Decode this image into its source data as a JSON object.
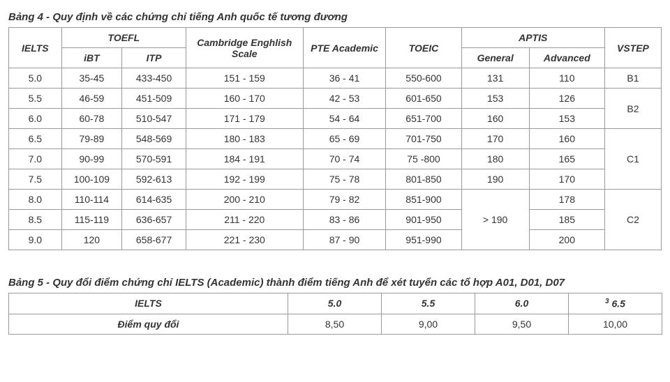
{
  "table4": {
    "title": "Bảng 4 - Quy định về các chứng chỉ tiếng Anh quốc tế tương đương",
    "header": {
      "ielts": "IELTS",
      "toefl": "TOEFL",
      "toefl_ibt": "iBT",
      "toefl_itp": "ITP",
      "cambridge": "Cambridge Enghlish Scale",
      "pte": "PTE Academic",
      "toeic": "TOEIC",
      "aptis": "APTIS",
      "aptis_general": "General",
      "aptis_advanced": "Advanced",
      "vstep": "VSTEP"
    },
    "rows": [
      {
        "ielts": "5.0",
        "ibt": "35-45",
        "itp": "433-450",
        "cam": "151 - 159",
        "pte": "36 - 41",
        "toeic": "550-600",
        "gen": "131",
        "adv": "110",
        "vstep": "B1"
      },
      {
        "ielts": "5.5",
        "ibt": "46-59",
        "itp": "451-509",
        "cam": "160 - 170",
        "pte": "42 - 53",
        "toeic": "601-650",
        "gen": "153",
        "adv": "126"
      },
      {
        "ielts": "6.0",
        "ibt": "60-78",
        "itp": "510-547",
        "cam": "171 - 179",
        "pte": "54 - 64",
        "toeic": "651-700",
        "gen": "160",
        "adv": "153"
      },
      {
        "ielts": "6.5",
        "ibt": "79-89",
        "itp": "548-569",
        "cam": "180 - 183",
        "pte": "65 - 69",
        "toeic": "701-750",
        "gen": "170",
        "adv": "160"
      },
      {
        "ielts": "7.0",
        "ibt": "90-99",
        "itp": "570-591",
        "cam": "184 - 191",
        "pte": "70 - 74",
        "toeic": "75 -800",
        "gen": "180",
        "adv": "165",
        "vstep": "C1"
      },
      {
        "ielts": "7.5",
        "ibt": "100-109",
        "itp": "592-613",
        "cam": "192 - 199",
        "pte": "75 - 78",
        "toeic": "801-850",
        "gen": "190",
        "adv": "170"
      },
      {
        "ielts": "8.0",
        "ibt": "110-114",
        "itp": "614-635",
        "cam": "200 - 210",
        "pte": "79 - 82",
        "toeic": "851-900",
        "adv": "178"
      },
      {
        "ielts": "8.5",
        "ibt": "115-119",
        "itp": "636-657",
        "cam": "211 - 220",
        "pte": "83 - 86",
        "toeic": "901-950",
        "adv": "185",
        "vstep": "C2"
      },
      {
        "ielts": "9.0",
        "ibt": "120",
        "itp": "658-677",
        "cam": "221 - 230",
        "pte": "87 - 90",
        "toeic": "951-990",
        "adv": "200"
      }
    ],
    "vstep_b2": "B2",
    "gen_gt190": "> 190",
    "colwidths": [
      "70",
      "80",
      "85",
      "155",
      "110",
      "100",
      "90",
      "100",
      "75"
    ]
  },
  "table5": {
    "title": "Bảng 5 - Quy đổi điểm chứng chỉ IELTS (Academic) thành điểm tiếng Anh để xét tuyển các tổ hợp A01, D01, D07",
    "header": {
      "ielts": "IELTS",
      "c1": "5.0",
      "c2": "5.5",
      "c3": "6.0",
      "c4_sup": "3",
      "c4": " 6.5",
      "conv": "Điểm quy đổi"
    },
    "row": {
      "c1": "8,50",
      "c2": "9,00",
      "c3": "9,50",
      "c4": "10,00"
    },
    "colwidths": [
      "400",
      "134",
      "134",
      "134",
      "134"
    ]
  }
}
